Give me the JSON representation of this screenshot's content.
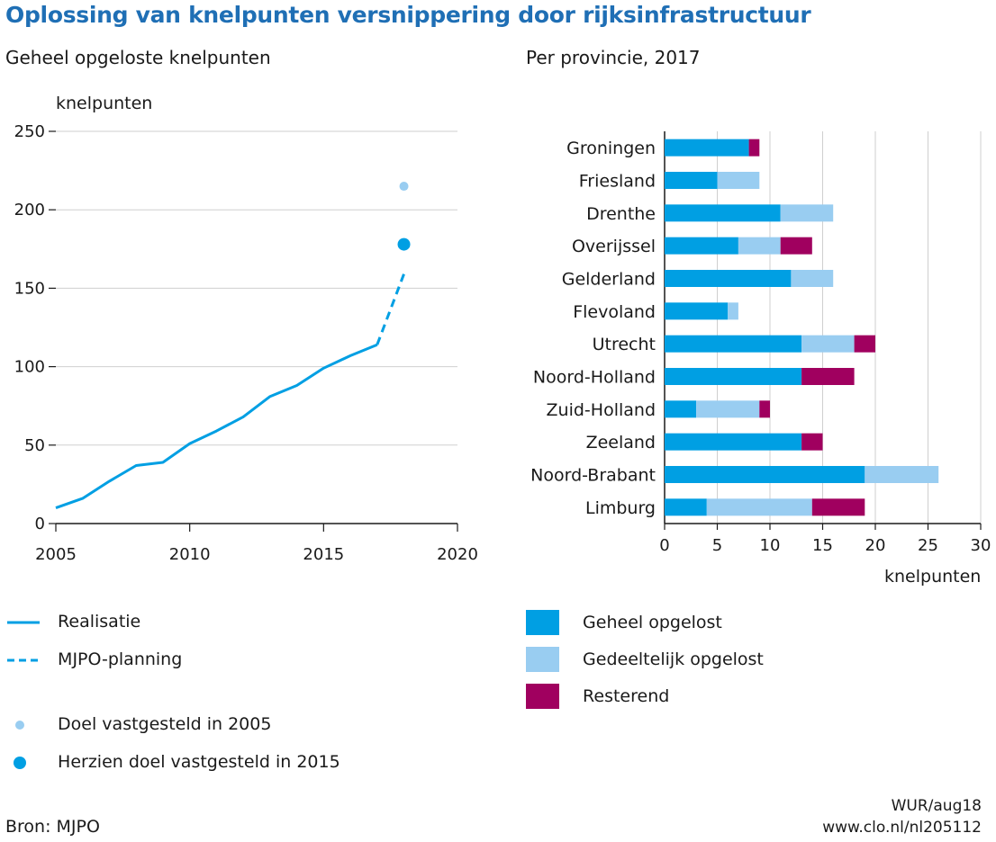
{
  "title": "Oplossing van knelpunten versnippering door rijksinfrastructuur",
  "colors": {
    "title": "#1f6fb5",
    "full": "#009fe3",
    "partial": "#99cdf1",
    "remaining": "#a0005f",
    "grid": "#cfcfcf",
    "axis": "#1a1a1a"
  },
  "chart_data": [
    {
      "type": "line",
      "title": "Geheel opgeloste knelpunten",
      "ylabel": "knelpunten",
      "xlabel": "",
      "xlim": [
        2005,
        2020
      ],
      "ylim": [
        0,
        250
      ],
      "xticks": [
        2005,
        2010,
        2015,
        2020
      ],
      "yticks": [
        0,
        50,
        100,
        150,
        200,
        250
      ],
      "series": [
        {
          "name": "Realisatie",
          "style": "solid",
          "x": [
            2005,
            2006,
            2007,
            2008,
            2009,
            2010,
            2011,
            2012,
            2013,
            2014,
            2015,
            2016,
            2017
          ],
          "y": [
            10,
            16,
            27,
            37,
            39,
            51,
            59,
            68,
            81,
            88,
            99,
            107,
            114
          ]
        },
        {
          "name": "MJPO-planning",
          "style": "dashed",
          "x": [
            2017,
            2018
          ],
          "y": [
            114,
            159
          ]
        }
      ],
      "points": [
        {
          "name": "Doel vastgesteld in 2005",
          "x": 2018,
          "y": 215,
          "size": "small",
          "color": "#99cdf1"
        },
        {
          "name": "Herzien doel vastgesteld in 2015",
          "x": 2018,
          "y": 178,
          "size": "large",
          "color": "#009fe3"
        }
      ]
    },
    {
      "type": "bar",
      "orientation": "horizontal",
      "stacked": true,
      "title": "Per provincie, 2017",
      "xlabel": "knelpunten",
      "xlim": [
        0,
        30
      ],
      "xticks": [
        0,
        5,
        10,
        15,
        20,
        25,
        30
      ],
      "categories": [
        "Groningen",
        "Friesland",
        "Drenthe",
        "Overijssel",
        "Gelderland",
        "Flevoland",
        "Utrecht",
        "Noord-Holland",
        "Zuid-Holland",
        "Zeeland",
        "Noord-Brabant",
        "Limburg"
      ],
      "series": [
        {
          "name": "Geheel opgelost",
          "color": "#009fe3",
          "values": [
            8,
            5,
            11,
            7,
            12,
            6,
            13,
            13,
            3,
            13,
            19,
            4
          ]
        },
        {
          "name": "Gedeeltelijk opgelost",
          "color": "#99cdf1",
          "values": [
            0,
            4,
            5,
            4,
            4,
            1,
            5,
            0,
            6,
            0,
            7,
            10
          ]
        },
        {
          "name": "Resterend",
          "color": "#a0005f",
          "values": [
            1,
            0,
            0,
            3,
            0,
            0,
            2,
            5,
            1,
            2,
            0,
            5
          ]
        }
      ]
    }
  ],
  "legend_left": {
    "realisatie": "Realisatie",
    "planning": "MJPO-planning",
    "doel2005": "Doel vastgesteld in 2005",
    "doel2015": "Herzien doel vastgesteld in 2015"
  },
  "legend_right": {
    "full": "Geheel opgelost",
    "partial": "Gedeeltelijk opgelost",
    "remaining": "Resterend"
  },
  "footer": {
    "source": "Bron: MJPO",
    "credit": "WUR/aug18",
    "url": "www.clo.nl/nl205112"
  }
}
